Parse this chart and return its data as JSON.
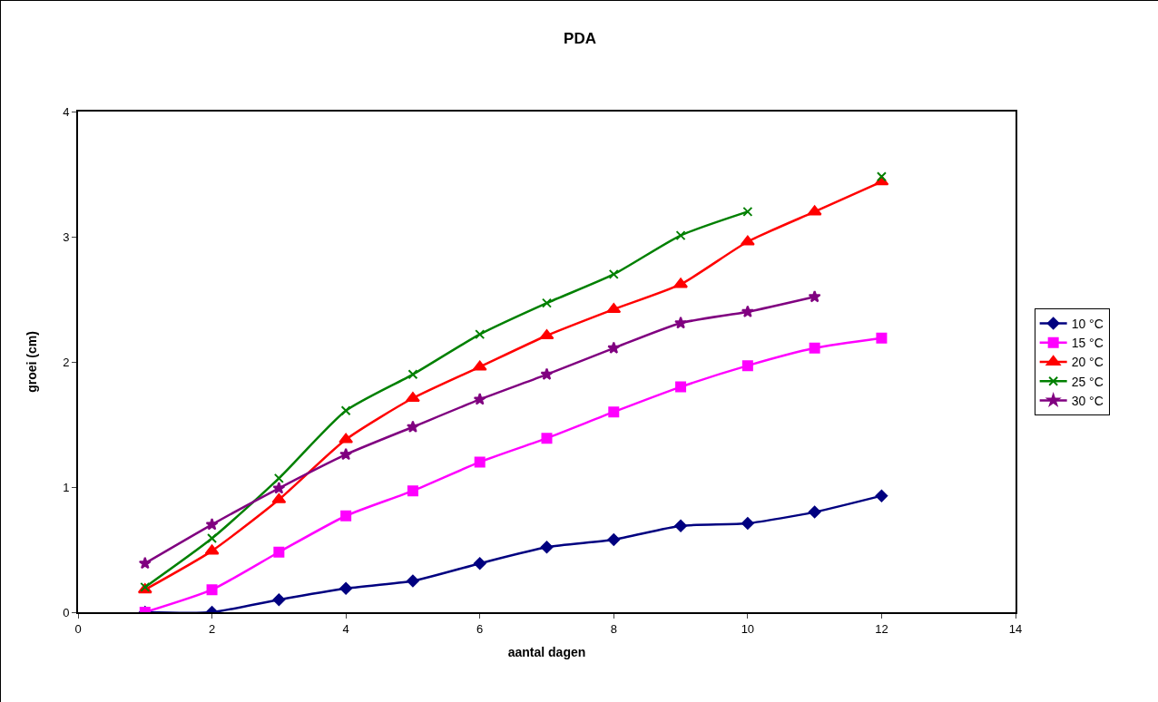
{
  "chart_data": {
    "type": "line",
    "title": "PDA",
    "xlabel": "aantal dagen",
    "ylabel": "groei (cm)",
    "x": [
      1,
      2,
      3,
      4,
      5,
      6,
      7,
      8,
      9,
      10,
      11,
      12
    ],
    "xlim": [
      0,
      14
    ],
    "xticks": [
      0,
      2,
      4,
      6,
      8,
      10,
      12,
      14
    ],
    "ylim": [
      0,
      4
    ],
    "yticks": [
      0,
      1,
      2,
      3,
      4
    ],
    "grid": false,
    "legend": "right",
    "line_style": "solid",
    "series": [
      {
        "name": "10 °C",
        "color": "#000080",
        "marker": "diamond",
        "values": [
          0,
          0,
          0.1,
          0.19,
          0.25,
          0.39,
          0.52,
          0.58,
          0.69,
          0.71,
          0.8,
          0.93
        ]
      },
      {
        "name": "15 °C",
        "color": "#ff00ff",
        "marker": "square",
        "values": [
          0,
          0.18,
          0.48,
          0.77,
          0.97,
          1.2,
          1.39,
          1.6,
          1.8,
          1.97,
          2.11,
          2.19
        ]
      },
      {
        "name": "20 °C",
        "color": "#ff0000",
        "marker": "triangle",
        "values": [
          0.18,
          0.49,
          0.9,
          1.38,
          1.71,
          1.96,
          2.21,
          2.42,
          2.62,
          2.96,
          3.2,
          3.44
        ]
      },
      {
        "name": "25 °C",
        "color": "#008000",
        "marker": "cross",
        "values": [
          0.2,
          0.59,
          1.07,
          1.61,
          1.9,
          2.22,
          2.47,
          2.7,
          3.01,
          3.2,
          null,
          3.48
        ]
      },
      {
        "name": "30 °C",
        "color": "#800080",
        "marker": "star",
        "values": [
          0.39,
          0.7,
          0.99,
          1.26,
          1.48,
          1.7,
          1.9,
          2.11,
          2.31,
          2.4,
          2.52,
          null
        ]
      }
    ]
  }
}
